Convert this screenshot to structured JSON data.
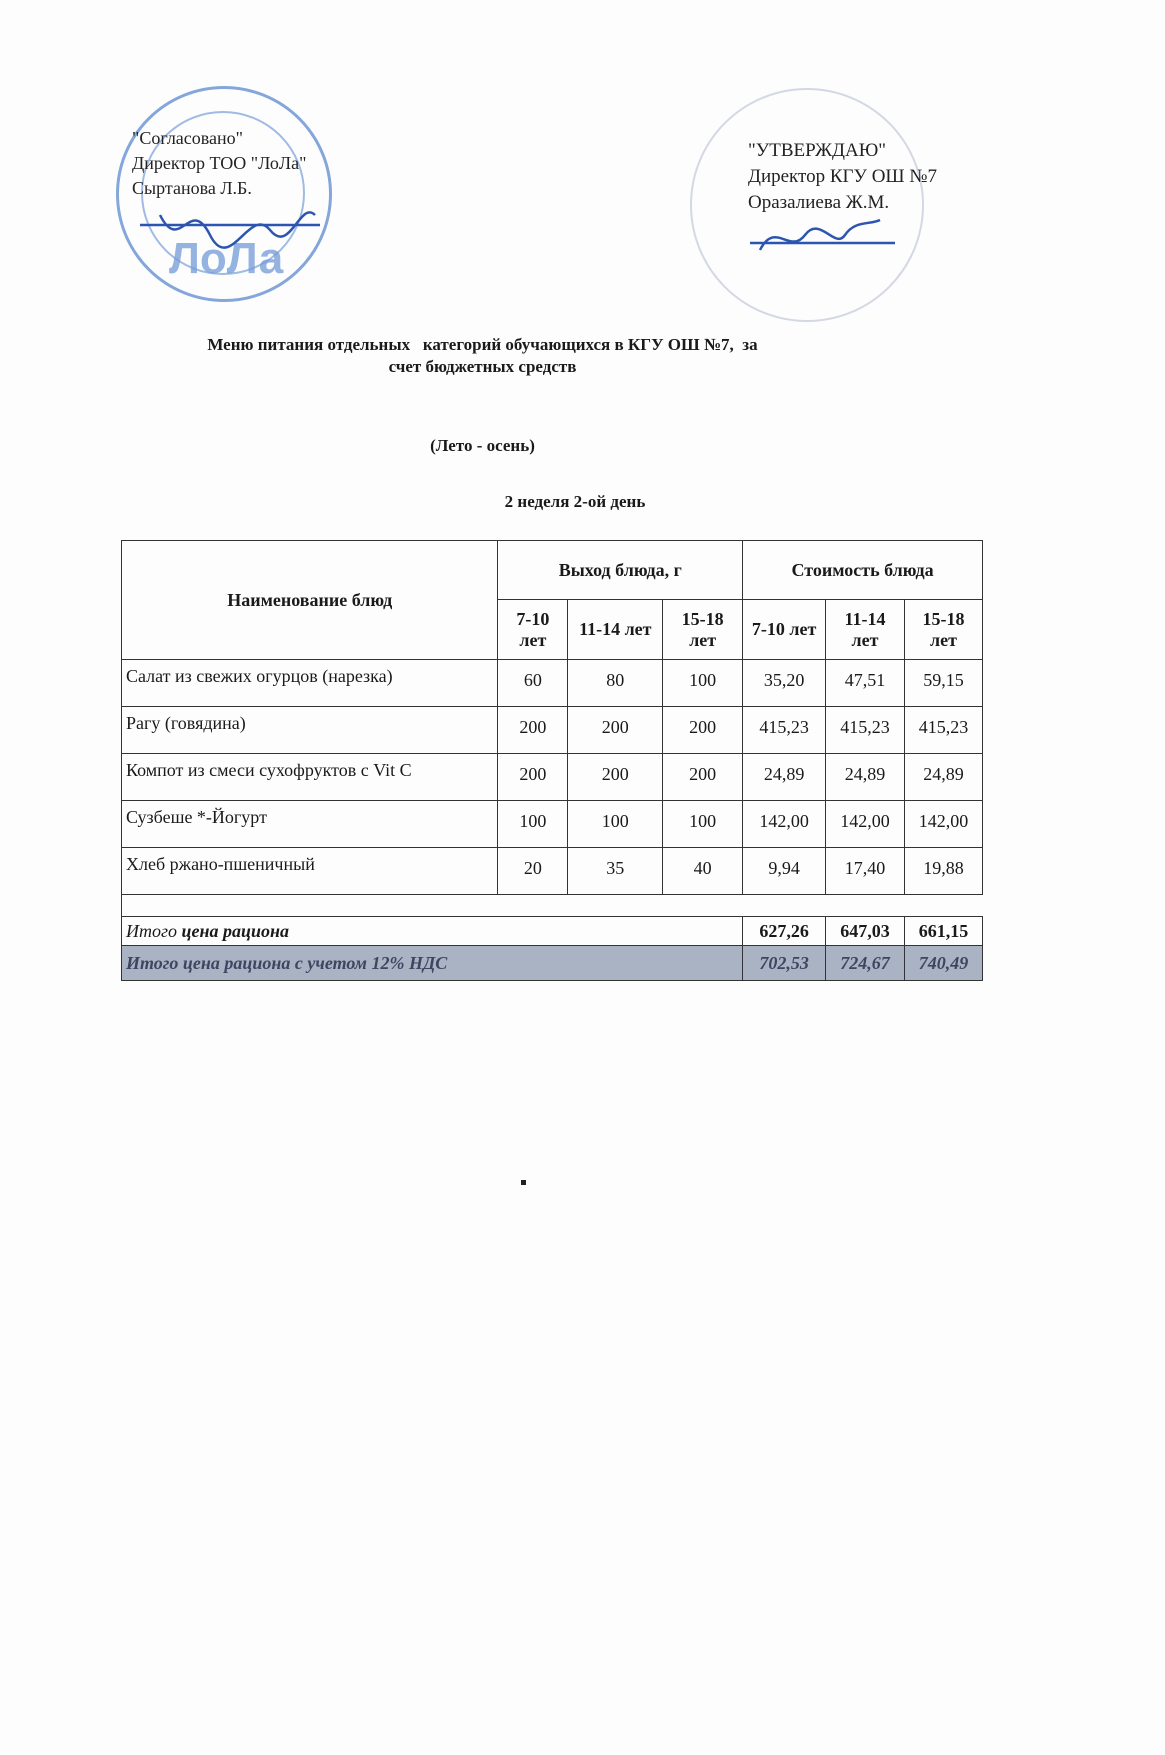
{
  "approval_left": {
    "line1": "\"Согласовано\"",
    "line2": "Директор ТОО \"ЛоЛа\"",
    "line3": "Сыртанова Л.Б.",
    "stamp_text": "ЛоЛа",
    "stamp_color": "#3a6fc4"
  },
  "approval_right": {
    "line1": "\"УТВЕРЖДАЮ\"",
    "line2": "Директор КГУ ОШ №7",
    "line3": "Оразалиева Ж.М.",
    "stamp_color": "#b8bfd0"
  },
  "title": {
    "line1": "Меню питания отдельных   категорий обучающихся в КГУ ОШ №7,  за",
    "line2": "счет бюджетных средств",
    "season": "(Лето - осень)",
    "day": "2 неделя 2-ой день"
  },
  "table": {
    "header_name": "Наименование блюд",
    "header_yield": "Выход блюда, г",
    "header_cost": "Стоимость блюда",
    "age_groups": [
      "7-10 лет",
      "11-14 лет",
      "15-18 лет",
      "7-10 лет",
      "11-14 лет",
      "15-18 лет"
    ],
    "rows": [
      {
        "name": "Салат из свежих огурцов (нарезка)",
        "values": [
          "60",
          "80",
          "100",
          "35,20",
          "47,51",
          "59,15"
        ]
      },
      {
        "name": "Рагу (говядина)",
        "values": [
          "200",
          "200",
          "200",
          "415,23",
          "415,23",
          "415,23"
        ]
      },
      {
        "name": "Компот из смеси сухофруктов с Vit C",
        "values": [
          "200",
          "200",
          "200",
          "24,89",
          "24,89",
          "24,89"
        ]
      },
      {
        "name": "Сузбеше *-Йогурт",
        "values": [
          "100",
          "100",
          "100",
          "142,00",
          "142,00",
          "142,00"
        ]
      },
      {
        "name": "Хлеб ржано-пшеничный",
        "values": [
          "20",
          "35",
          "40",
          "9,94",
          "17,40",
          "19,88"
        ]
      }
    ],
    "total": {
      "label_a": "Итого",
      "label_b": " цена рациона",
      "values": [
        "627,26",
        "647,03",
        "661,15"
      ]
    },
    "total_vat": {
      "label": "Итого цена рациона с учетом 12% НДС",
      "values": [
        "702,53",
        "724,67",
        "740,49"
      ],
      "color": "#aab3c4"
    }
  }
}
